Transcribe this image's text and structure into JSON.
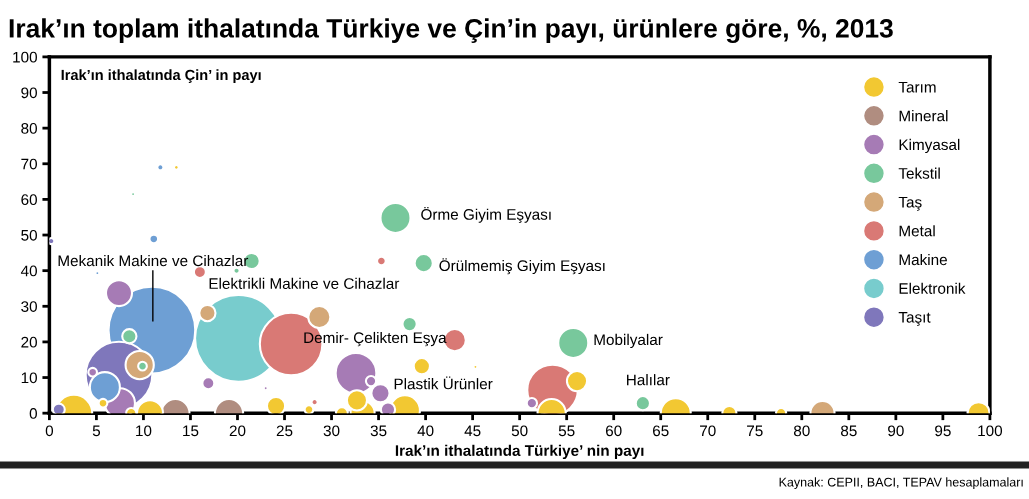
{
  "chart_data": {
    "type": "bubble",
    "title": "Irak’ın toplam ithalatında Türkiye ve Çin’in payı, ürünlere göre, %, 2013",
    "xlabel": "Irak’ın ithalatında Türkiye’ nin payı",
    "ylabel": "Irak’ın ithalatında Çin’ in payı",
    "xlim": [
      0,
      100
    ],
    "xticks": [
      0,
      5,
      10,
      15,
      20,
      25,
      30,
      35,
      40,
      45,
      50,
      55,
      60,
      65,
      70,
      75,
      80,
      85,
      90,
      95,
      100
    ],
    "ylim": [
      0,
      100
    ],
    "yticks": [
      0,
      10,
      20,
      30,
      40,
      50,
      60,
      70,
      80,
      90,
      100
    ],
    "relative": false,
    "grid": false,
    "legend": "top right",
    "series": [
      {
        "name": "Tarım",
        "color": "#f2c832",
        "x": [
          2.6,
          5.7,
          8.7,
          10.7,
          24.1,
          27.6,
          31.1,
          32.7,
          33.3,
          37.8,
          39.6,
          45.3,
          53.4,
          56.1,
          66.6,
          72.3,
          77.8,
          98.8,
          13.5
        ],
        "values": [
          0,
          2.8,
          0,
          0,
          2,
          1,
          0,
          3.6,
          0,
          0.8,
          13.2,
          13,
          0,
          9,
          0,
          0,
          0,
          0,
          69
        ],
        "sizes": [
          0.18,
          0.01,
          0.014,
          0.09,
          0.044,
          0.01,
          0.019,
          0.054,
          0.078,
          0.12,
          0.035,
          0.002,
          0.106,
          0.054,
          0.12,
          0.027,
          0.014,
          0.065,
          0.003
        ]
      },
      {
        "name": "Mineral",
        "color": "#b08d80",
        "x": [
          13.4,
          19.1
        ],
        "values": [
          0,
          0
        ],
        "sizes": [
          0.106,
          0.106
        ]
      },
      {
        "name": "Kimyasal",
        "color": "#a67bb5",
        "x": [
          7.4,
          16.9,
          23,
          32.6,
          35.2,
          34.2,
          51.3,
          7.5,
          4.6,
          36
        ],
        "values": [
          33.7,
          8.4,
          7,
          11.2,
          5.6,
          9,
          2.8,
          2.8,
          11.5,
          1
        ],
        "sizes": [
          0.09,
          0.019,
          0.002,
          0.22,
          0.044,
          0.014,
          0.014,
          0.12,
          0.01,
          0.027
        ]
      },
      {
        "name": "Tekstil",
        "color": "#78c89c",
        "x": [
          36.8,
          39.8,
          38.3,
          55.7,
          63.1,
          21.5,
          19.9,
          8.9,
          8.5,
          9.9
        ],
        "values": [
          54.8,
          42.1,
          25,
          19.7,
          2.8,
          42.7,
          40,
          61.5,
          21.6,
          13.2
        ],
        "sizes": [
          0.12,
          0.044,
          0.027,
          0.12,
          0.027,
          0.035,
          0.005,
          0.002,
          0.027,
          0.01
        ]
      },
      {
        "name": "Taş",
        "color": "#d4a878",
        "x": [
          16.8,
          28.7,
          9.6,
          82.2
        ],
        "values": [
          28.1,
          27,
          13.5,
          0
        ],
        "sizes": [
          0.035,
          0.065,
          0.106,
          0.078
        ]
      },
      {
        "name": "Metal",
        "color": "#d97975",
        "x": [
          16,
          35.3,
          43.1,
          53.5,
          25.7,
          28.2
        ],
        "values": [
          39.6,
          42.7,
          20.5,
          6.5,
          19.4,
          3.1
        ],
        "sizes": [
          0.019,
          0.01,
          0.065,
          0.34,
          0.52,
          0.005
        ]
      },
      {
        "name": "Makine",
        "color": "#6e9fd4",
        "x": [
          10.9,
          11.8,
          11.1,
          5.1,
          5.9
        ],
        "values": [
          23.3,
          69,
          48.9,
          39.3,
          7.3
        ],
        "sizes": [
          1,
          0.005,
          0.01,
          0.002,
          0.12
        ]
      },
      {
        "name": "Elektronik",
        "color": "#78cccd",
        "x": [
          20.1
        ],
        "values": [
          21
        ],
        "sizes": [
          1
        ]
      },
      {
        "name": "Taşıt",
        "color": "#7f77bb",
        "x": [
          0.2,
          7.4,
          1
        ],
        "values": [
          48.3,
          10.7,
          1
        ],
        "sizes": [
          0.005,
          0.59,
          0.019
        ]
      }
    ],
    "annotations": [
      "Mekanik Makine ve Cihazlar",
      "Elektrikli Makine ve Cihazlar",
      {
        "text": "Demir- Çelikten Eşya",
        "x": 25.7,
        "y": 19.4
      },
      {
        "text": "Örme Giyim Eşyası",
        "x": 36.8,
        "y": 54.8
      },
      {
        "text": "Örülmemiş Giyim Eşyası",
        "x": 39.8,
        "y": 42.1
      },
      {
        "text": "Mobilyalar",
        "x": 55.7,
        "y": 19.7
      },
      {
        "text": "Plastik Ürünler",
        "x": 35.2,
        "y": 5.6
      },
      {
        "text": "Halılar",
        "x": 63.1,
        "y": 2.8
      },
      "Kaynak: CEPII, BACI, TEPAV hesaplamaları"
    ]
  }
}
